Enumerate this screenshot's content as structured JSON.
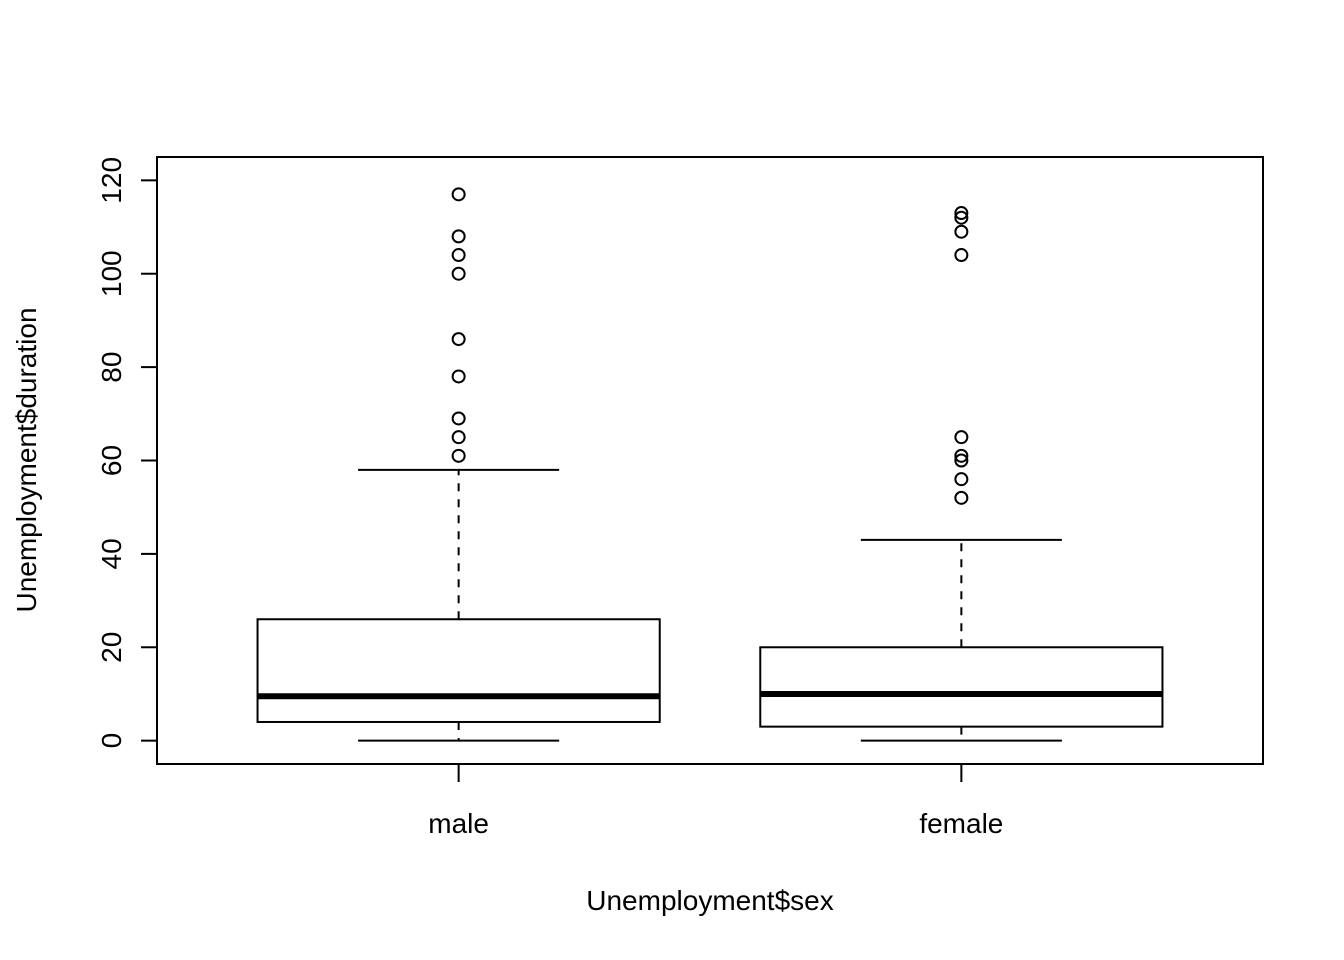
{
  "chart_data": {
    "type": "boxplot",
    "xlabel": "Unemployment$sex",
    "ylabel": "Unemployment$duration",
    "ylim": [
      -5,
      125
    ],
    "yticks": [
      0,
      20,
      40,
      60,
      80,
      100,
      120
    ],
    "ytick_labels": [
      "0",
      "20",
      "40",
      "60",
      "80",
      "100",
      "120"
    ],
    "grid": false,
    "legend": "none",
    "groups": [
      {
        "label": "male",
        "whisker_low": 0,
        "q1": 4,
        "median": 9.5,
        "q3": 26,
        "whisker_high": 58,
        "outliers": [
          61,
          65,
          69,
          78,
          86,
          100,
          104,
          108,
          117
        ]
      },
      {
        "label": "female",
        "whisker_low": 0,
        "q1": 3,
        "median": 10,
        "q3": 20,
        "whisker_high": 43,
        "outliers": [
          52,
          56,
          60,
          61,
          65,
          104,
          109,
          112,
          113
        ]
      }
    ]
  }
}
